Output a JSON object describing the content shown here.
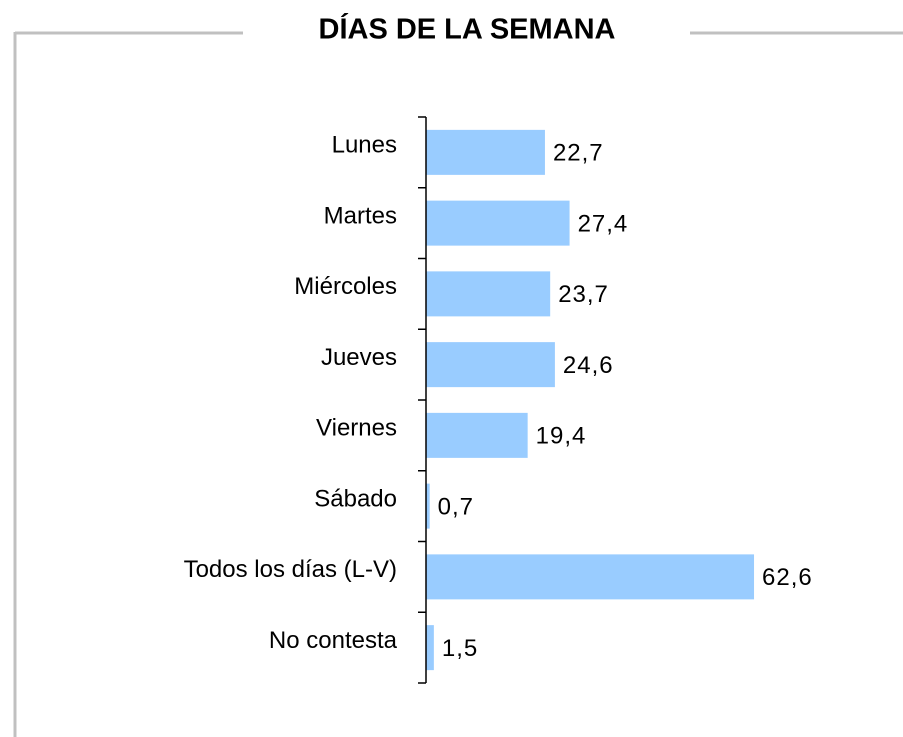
{
  "chart_data": {
    "type": "bar",
    "orientation": "horizontal",
    "title": "DÍAS DE LA SEMANA",
    "categories": [
      "Lunes",
      "Martes",
      "Miércoles",
      "Jueves",
      "Viernes",
      "Sábado",
      "Todos los días (L-V)",
      "No contesta"
    ],
    "values": [
      22.7,
      27.4,
      23.7,
      24.6,
      19.4,
      0.7,
      62.6,
      1.5
    ],
    "value_labels": [
      "22,7",
      "27,4",
      "23,7",
      "24,6",
      "19,4",
      "0,7",
      "62,6",
      "1,5"
    ],
    "color": "#99ccff"
  }
}
